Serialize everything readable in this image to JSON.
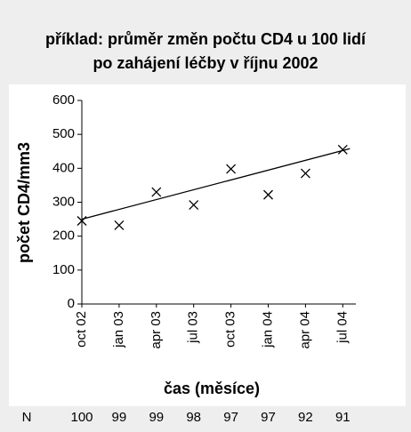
{
  "chart_data": {
    "type": "scatter",
    "title": [
      "příklad: průměr změn počtu CD4 u 100 lidí",
      "po zahájení léčby v říjnu 2002"
    ],
    "categories": [
      "oct 02",
      "jan 03",
      "apr 03",
      "jul 03",
      "oct 03",
      "jan 04",
      "apr 04",
      "jul 04"
    ],
    "values": [
      245,
      232,
      330,
      292,
      398,
      322,
      385,
      455
    ],
    "trendline": [
      250,
      458
    ],
    "color": "#000000",
    "ylim": [
      0,
      600
    ],
    "yticks": [
      0,
      100,
      200,
      300,
      400,
      500,
      600
    ],
    "ylabel": "počet CD4/mm3",
    "xlabel": "čas (měsíce)",
    "n_label": "N",
    "n_values": [
      100,
      99,
      99,
      98,
      97,
      97,
      92,
      91
    ]
  }
}
